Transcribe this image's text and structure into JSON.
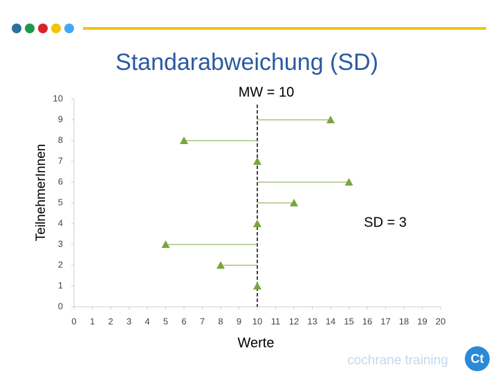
{
  "chart_data": {
    "type": "scatter",
    "title": "Standarabweichung (SD)",
    "x_label": "Werte",
    "y_label": "TeilnehmerInnen",
    "annotations": [
      "MW = 10",
      "SD = 3"
    ],
    "mean": 10,
    "series": [
      {
        "color": "#77a83a",
        "x": [
          14,
          6,
          10,
          15,
          12,
          10,
          5,
          8,
          10
        ],
        "values": [
          9,
          8,
          7,
          6,
          5,
          4,
          3,
          2,
          1
        ]
      }
    ],
    "xlim": [
      0,
      20
    ],
    "xticks": [
      0,
      1,
      2,
      3,
      4,
      5,
      6,
      7,
      8,
      9,
      10,
      11,
      12,
      13,
      14,
      15,
      16,
      17,
      18,
      19,
      20
    ],
    "ylim": [
      0,
      10
    ],
    "yticks": [
      0,
      1,
      2,
      3,
      4,
      5,
      6,
      7,
      8,
      9,
      10
    ],
    "footer": "cochrane training"
  }
}
